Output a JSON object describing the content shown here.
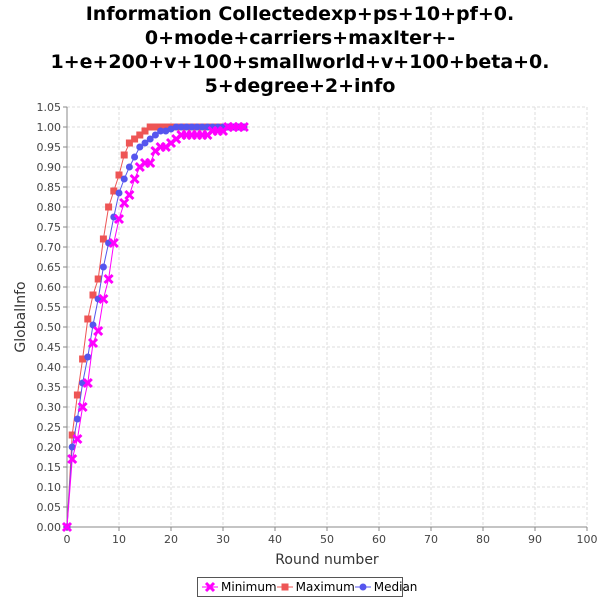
{
  "chart_data": {
    "type": "line",
    "title_lines": [
      "Information Collectedexp+ps+10+pf+0.",
      "0+mode+carriers+maxIter+-",
      "1+e+200+v+100+smallworld+v+100+beta+0.",
      "5+degree+2+info"
    ],
    "xlabel": "Round number",
    "ylabel": "GlobalInfo",
    "xlim": [
      0,
      100
    ],
    "ylim": [
      0,
      1.05
    ],
    "xticks": [
      "0",
      "10",
      "20",
      "30",
      "40",
      "50",
      "60",
      "70",
      "80",
      "90",
      "100"
    ],
    "yticks": [
      "0.00",
      "0.05",
      "0.10",
      "0.15",
      "0.20",
      "0.25",
      "0.30",
      "0.35",
      "0.40",
      "0.45",
      "0.50",
      "0.55",
      "0.60",
      "0.65",
      "0.70",
      "0.75",
      "0.80",
      "0.85",
      "0.90",
      "0.95",
      "1.00",
      "1.05"
    ],
    "grid": true,
    "legend_position": "bottom",
    "series": [
      {
        "name": "Minimum",
        "color": "#ff00ff",
        "marker": "x",
        "x": [
          0,
          1,
          2,
          3,
          4,
          5,
          6,
          7,
          8,
          9,
          10,
          11,
          12,
          13,
          14,
          15,
          16,
          17,
          18,
          19,
          20,
          21,
          22,
          23,
          24,
          25,
          26,
          27,
          28,
          29,
          30,
          31,
          32,
          33,
          34
        ],
        "y": [
          0.0,
          0.17,
          0.22,
          0.3,
          0.36,
          0.46,
          0.49,
          0.57,
          0.62,
          0.71,
          0.77,
          0.81,
          0.83,
          0.87,
          0.9,
          0.91,
          0.91,
          0.94,
          0.95,
          0.95,
          0.96,
          0.97,
          0.98,
          0.98,
          0.98,
          0.98,
          0.98,
          0.98,
          0.99,
          0.99,
          0.99,
          1.0,
          1.0,
          1.0,
          1.0
        ]
      },
      {
        "name": "Maximum",
        "color": "#ee5555",
        "marker": "square",
        "x": [
          0,
          1,
          2,
          3,
          4,
          5,
          6,
          7,
          8,
          9,
          10,
          11,
          12,
          13,
          14,
          15,
          16,
          17,
          18,
          19,
          20,
          21,
          22,
          23,
          24,
          25,
          26,
          27,
          28,
          29,
          30,
          31,
          32,
          33,
          34
        ],
        "y": [
          0.0,
          0.23,
          0.33,
          0.42,
          0.52,
          0.58,
          0.62,
          0.72,
          0.8,
          0.84,
          0.88,
          0.93,
          0.96,
          0.97,
          0.98,
          0.99,
          1.0,
          1.0,
          1.0,
          1.0,
          1.0,
          1.0,
          1.0,
          1.0,
          1.0,
          1.0,
          1.0,
          1.0,
          1.0,
          1.0,
          1.0,
          1.0,
          1.0,
          1.0,
          1.0
        ]
      },
      {
        "name": "Median",
        "color": "#5555ee",
        "marker": "circle",
        "x": [
          0,
          1,
          2,
          3,
          4,
          5,
          6,
          7,
          8,
          9,
          10,
          11,
          12,
          13,
          14,
          15,
          16,
          17,
          18,
          19,
          20,
          21,
          22,
          23,
          24,
          25,
          26,
          27,
          28,
          29,
          30,
          31,
          32,
          33,
          34
        ],
        "y": [
          0.0,
          0.2,
          0.27,
          0.36,
          0.425,
          0.505,
          0.57,
          0.65,
          0.71,
          0.775,
          0.835,
          0.87,
          0.9,
          0.925,
          0.95,
          0.96,
          0.97,
          0.98,
          0.99,
          0.99,
          0.995,
          1.0,
          1.0,
          1.0,
          1.0,
          1.0,
          1.0,
          1.0,
          1.0,
          1.0,
          1.0,
          1.0,
          1.0,
          1.0,
          1.0
        ]
      }
    ]
  }
}
